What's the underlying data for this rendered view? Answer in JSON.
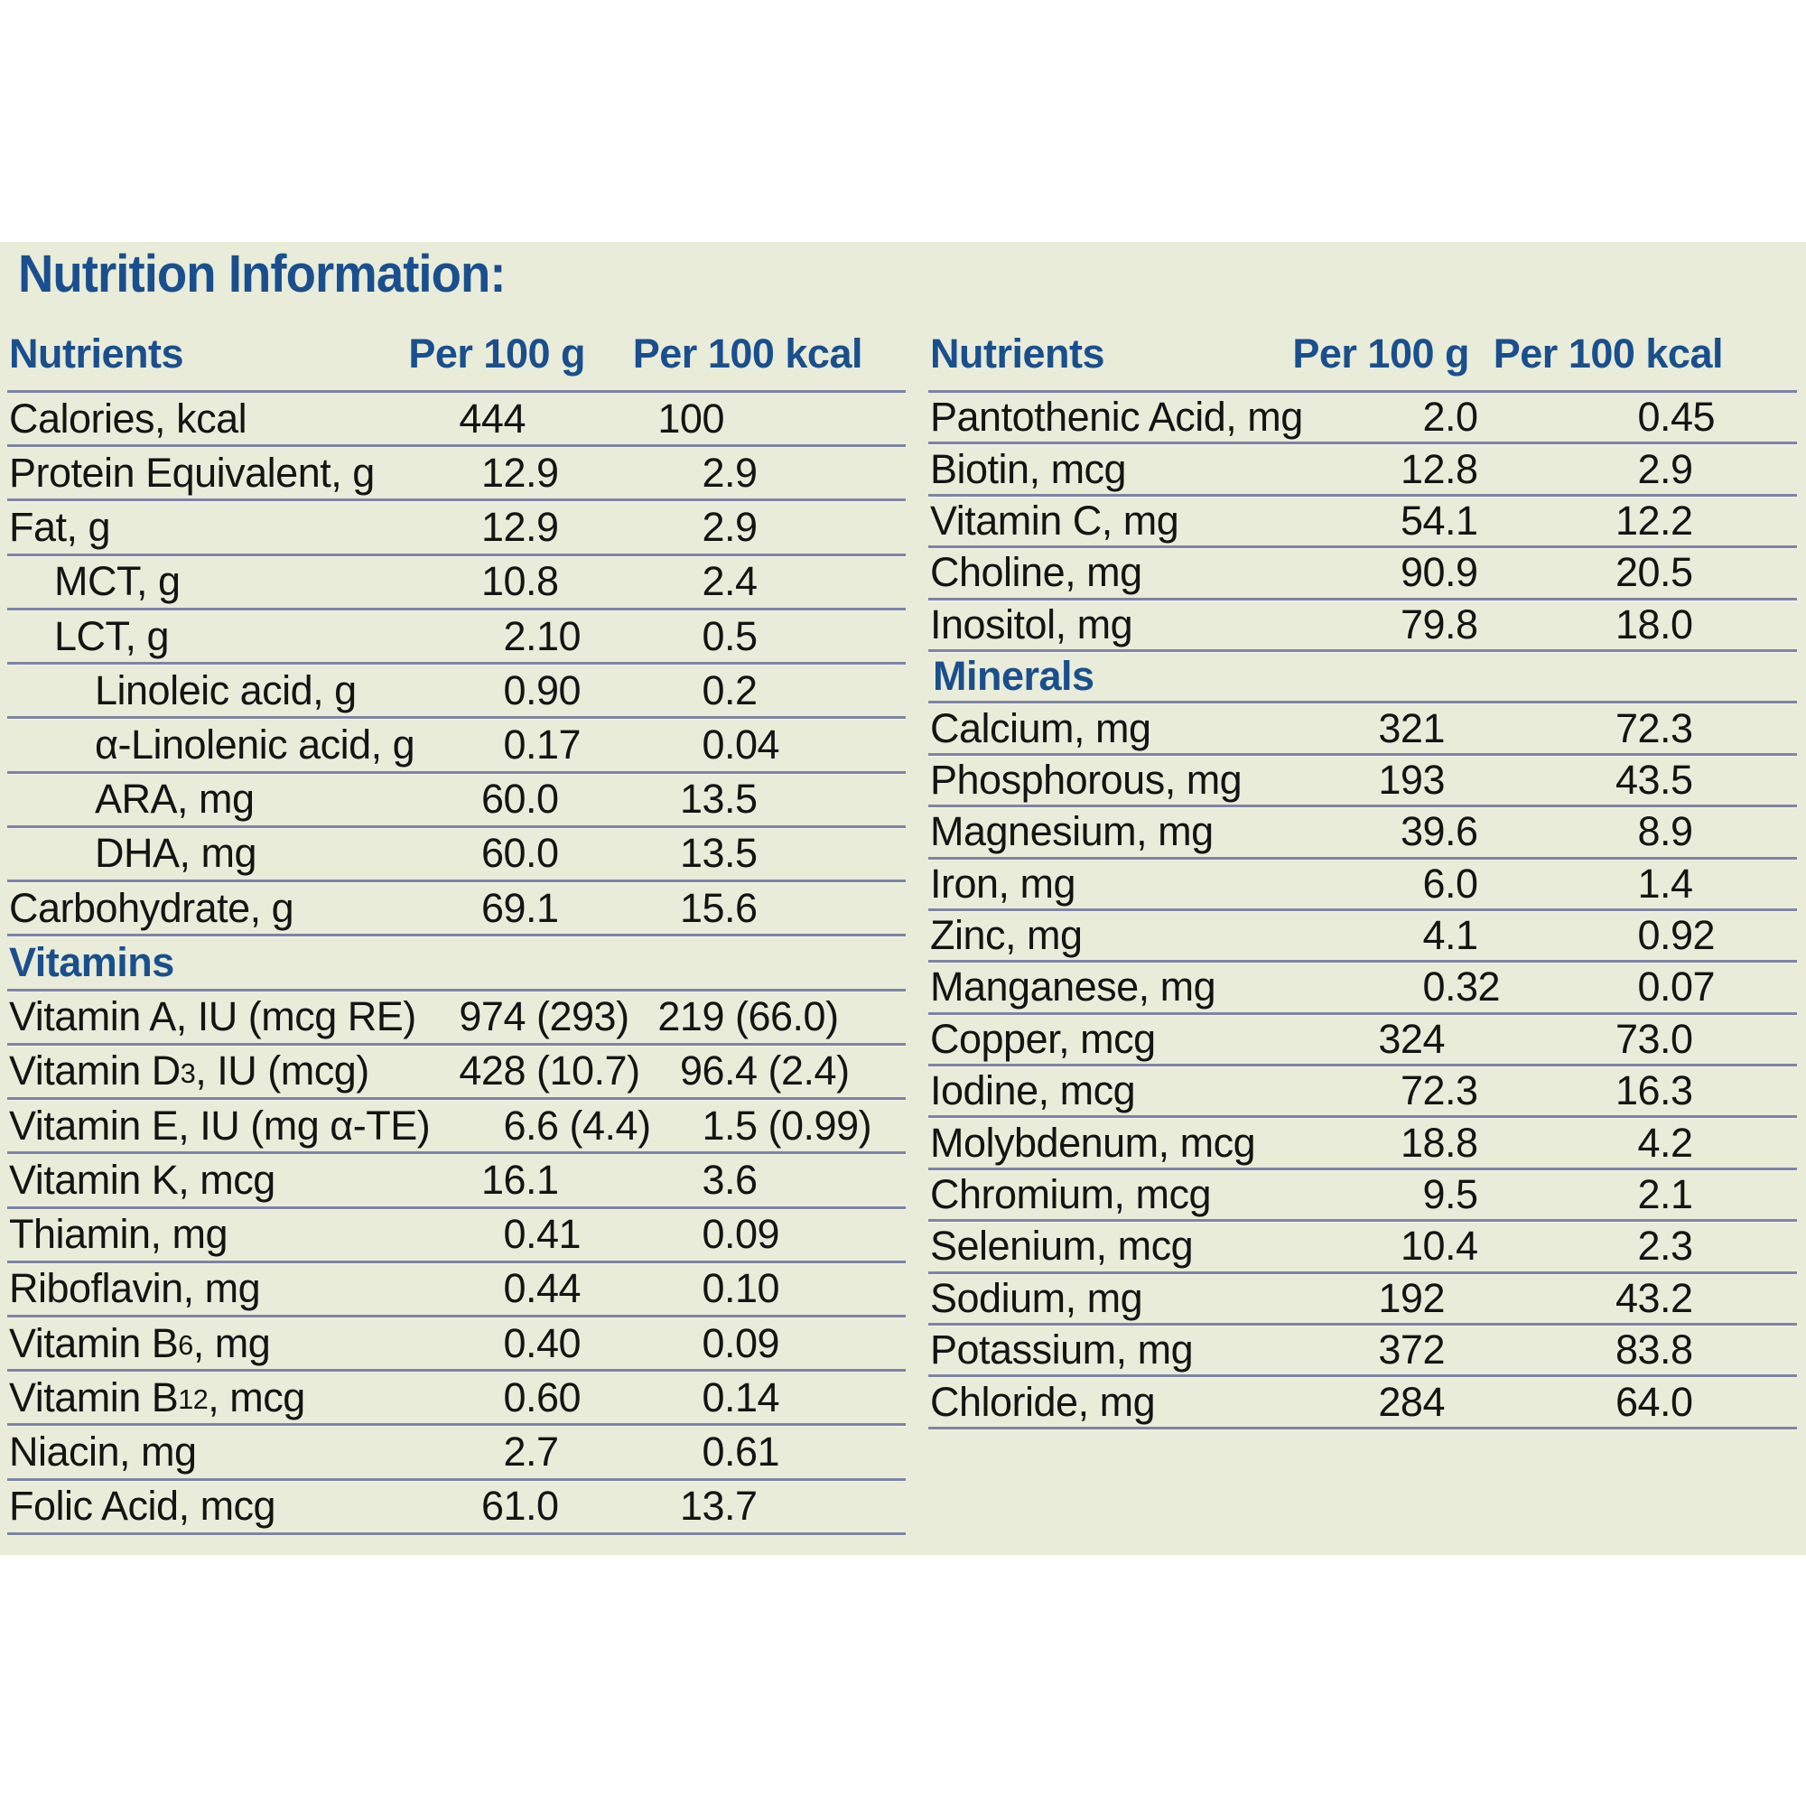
{
  "title": "Nutrition Information:",
  "columns": [
    "Nutrients",
    "Per 100 g",
    "Per 100 kcal"
  ],
  "colors": {
    "panel_background": "#e9ecd8",
    "heading_blue": "#1a4f8e",
    "row_line": "#7e84a6",
    "text": "#141414"
  },
  "left_table": {
    "rows": [
      {
        "label": "Calories, kcal",
        "indent": 0,
        "per_100g": "444",
        "per_100kcal": "100"
      },
      {
        "label": "Protein Equivalent, g",
        "indent": 0,
        "per_100g": "12.9",
        "per_100kcal": "2.9"
      },
      {
        "label": "Fat, g",
        "indent": 0,
        "per_100g": "12.9",
        "per_100kcal": "2.9"
      },
      {
        "label": "MCT, g",
        "indent": 1,
        "per_100g": "10.8",
        "per_100kcal": "2.4"
      },
      {
        "label": "LCT, g",
        "indent": 1,
        "per_100g": "2.10",
        "per_100kcal": "0.5"
      },
      {
        "label": "Linoleic acid, g",
        "indent": 2,
        "per_100g": "0.90",
        "per_100kcal": "0.2"
      },
      {
        "label": "α-Linolenic acid, g",
        "indent": 2,
        "per_100g": "0.17",
        "per_100kcal": "0.04"
      },
      {
        "label": "ARA, mg",
        "indent": 2,
        "per_100g": "60.0",
        "per_100kcal": "13.5"
      },
      {
        "label": "DHA, mg",
        "indent": 2,
        "per_100g": "60.0",
        "per_100kcal": "13.5"
      },
      {
        "label": "Carbohydrate, g",
        "indent": 0,
        "per_100g": "69.1",
        "per_100kcal": "15.6"
      },
      {
        "section": "Vitamins"
      },
      {
        "label": "Vitamin A, IU (mcg RE)",
        "indent": 0,
        "per_100g": "974 (293)",
        "per_100kcal": "219 (66.0)"
      },
      {
        "label": "Vitamin D_{3}, IU (mcg)",
        "indent": 0,
        "per_100g": "428 (10.7)",
        "per_100kcal": "96.4 (2.4)"
      },
      {
        "label": "Vitamin E, IU (mg α-TE)",
        "indent": 0,
        "per_100g": "6.6 (4.4)",
        "per_100kcal": "1.5 (0.99)"
      },
      {
        "label": "Vitamin K, mcg",
        "indent": 0,
        "per_100g": "16.1",
        "per_100kcal": "3.6"
      },
      {
        "label": "Thiamin, mg",
        "indent": 0,
        "per_100g": "0.41",
        "per_100kcal": "0.09"
      },
      {
        "label": "Riboflavin, mg",
        "indent": 0,
        "per_100g": "0.44",
        "per_100kcal": "0.10"
      },
      {
        "label": "Vitamin B_{6}, mg",
        "indent": 0,
        "per_100g": "0.40",
        "per_100kcal": "0.09"
      },
      {
        "label": "Vitamin B_{12}, mcg",
        "indent": 0,
        "per_100g": "0.60",
        "per_100kcal": "0.14"
      },
      {
        "label": "Niacin, mg",
        "indent": 0,
        "per_100g": "2.7",
        "per_100kcal": "0.61"
      },
      {
        "label": "Folic Acid, mcg",
        "indent": 0,
        "per_100g": "61.0",
        "per_100kcal": "13.7"
      }
    ]
  },
  "right_table": {
    "rows": [
      {
        "label": "Pantothenic Acid, mg",
        "indent": 0,
        "per_100g": "2.0",
        "per_100kcal": "0.45"
      },
      {
        "label": "Biotin, mcg",
        "indent": 0,
        "per_100g": "12.8",
        "per_100kcal": "2.9"
      },
      {
        "label": "Vitamin C, mg",
        "indent": 0,
        "per_100g": "54.1",
        "per_100kcal": "12.2"
      },
      {
        "label": "Choline, mg",
        "indent": 0,
        "per_100g": "90.9",
        "per_100kcal": "20.5"
      },
      {
        "label": "Inositol, mg",
        "indent": 0,
        "per_100g": "79.8",
        "per_100kcal": "18.0"
      },
      {
        "section": "Minerals"
      },
      {
        "label": "Calcium, mg",
        "indent": 0,
        "per_100g": "321",
        "per_100kcal": "72.3"
      },
      {
        "label": "Phosphorous, mg",
        "indent": 0,
        "per_100g": "193",
        "per_100kcal": "43.5"
      },
      {
        "label": "Magnesium, mg",
        "indent": 0,
        "per_100g": "39.6",
        "per_100kcal": "8.9"
      },
      {
        "label": "Iron, mg",
        "indent": 0,
        "per_100g": "6.0",
        "per_100kcal": "1.4"
      },
      {
        "label": "Zinc, mg",
        "indent": 0,
        "per_100g": "4.1",
        "per_100kcal": "0.92"
      },
      {
        "label": "Manganese, mg",
        "indent": 0,
        "per_100g": "0.32",
        "per_100kcal": "0.07"
      },
      {
        "label": "Copper, mcg",
        "indent": 0,
        "per_100g": "324",
        "per_100kcal": "73.0"
      },
      {
        "label": "Iodine, mcg",
        "indent": 0,
        "per_100g": "72.3",
        "per_100kcal": "16.3"
      },
      {
        "label": "Molybdenum, mcg",
        "indent": 0,
        "per_100g": "18.8",
        "per_100kcal": "4.2"
      },
      {
        "label": "Chromium, mcg",
        "indent": 0,
        "per_100g": "9.5",
        "per_100kcal": "2.1"
      },
      {
        "label": "Selenium, mcg",
        "indent": 0,
        "per_100g": "10.4",
        "per_100kcal": "2.3"
      },
      {
        "label": "Sodium, mg",
        "indent": 0,
        "per_100g": "192",
        "per_100kcal": "43.2"
      },
      {
        "label": "Potassium, mg",
        "indent": 0,
        "per_100g": "372",
        "per_100kcal": "83.8"
      },
      {
        "label": "Chloride, mg",
        "indent": 0,
        "per_100g": "284",
        "per_100kcal": "64.0"
      }
    ]
  }
}
